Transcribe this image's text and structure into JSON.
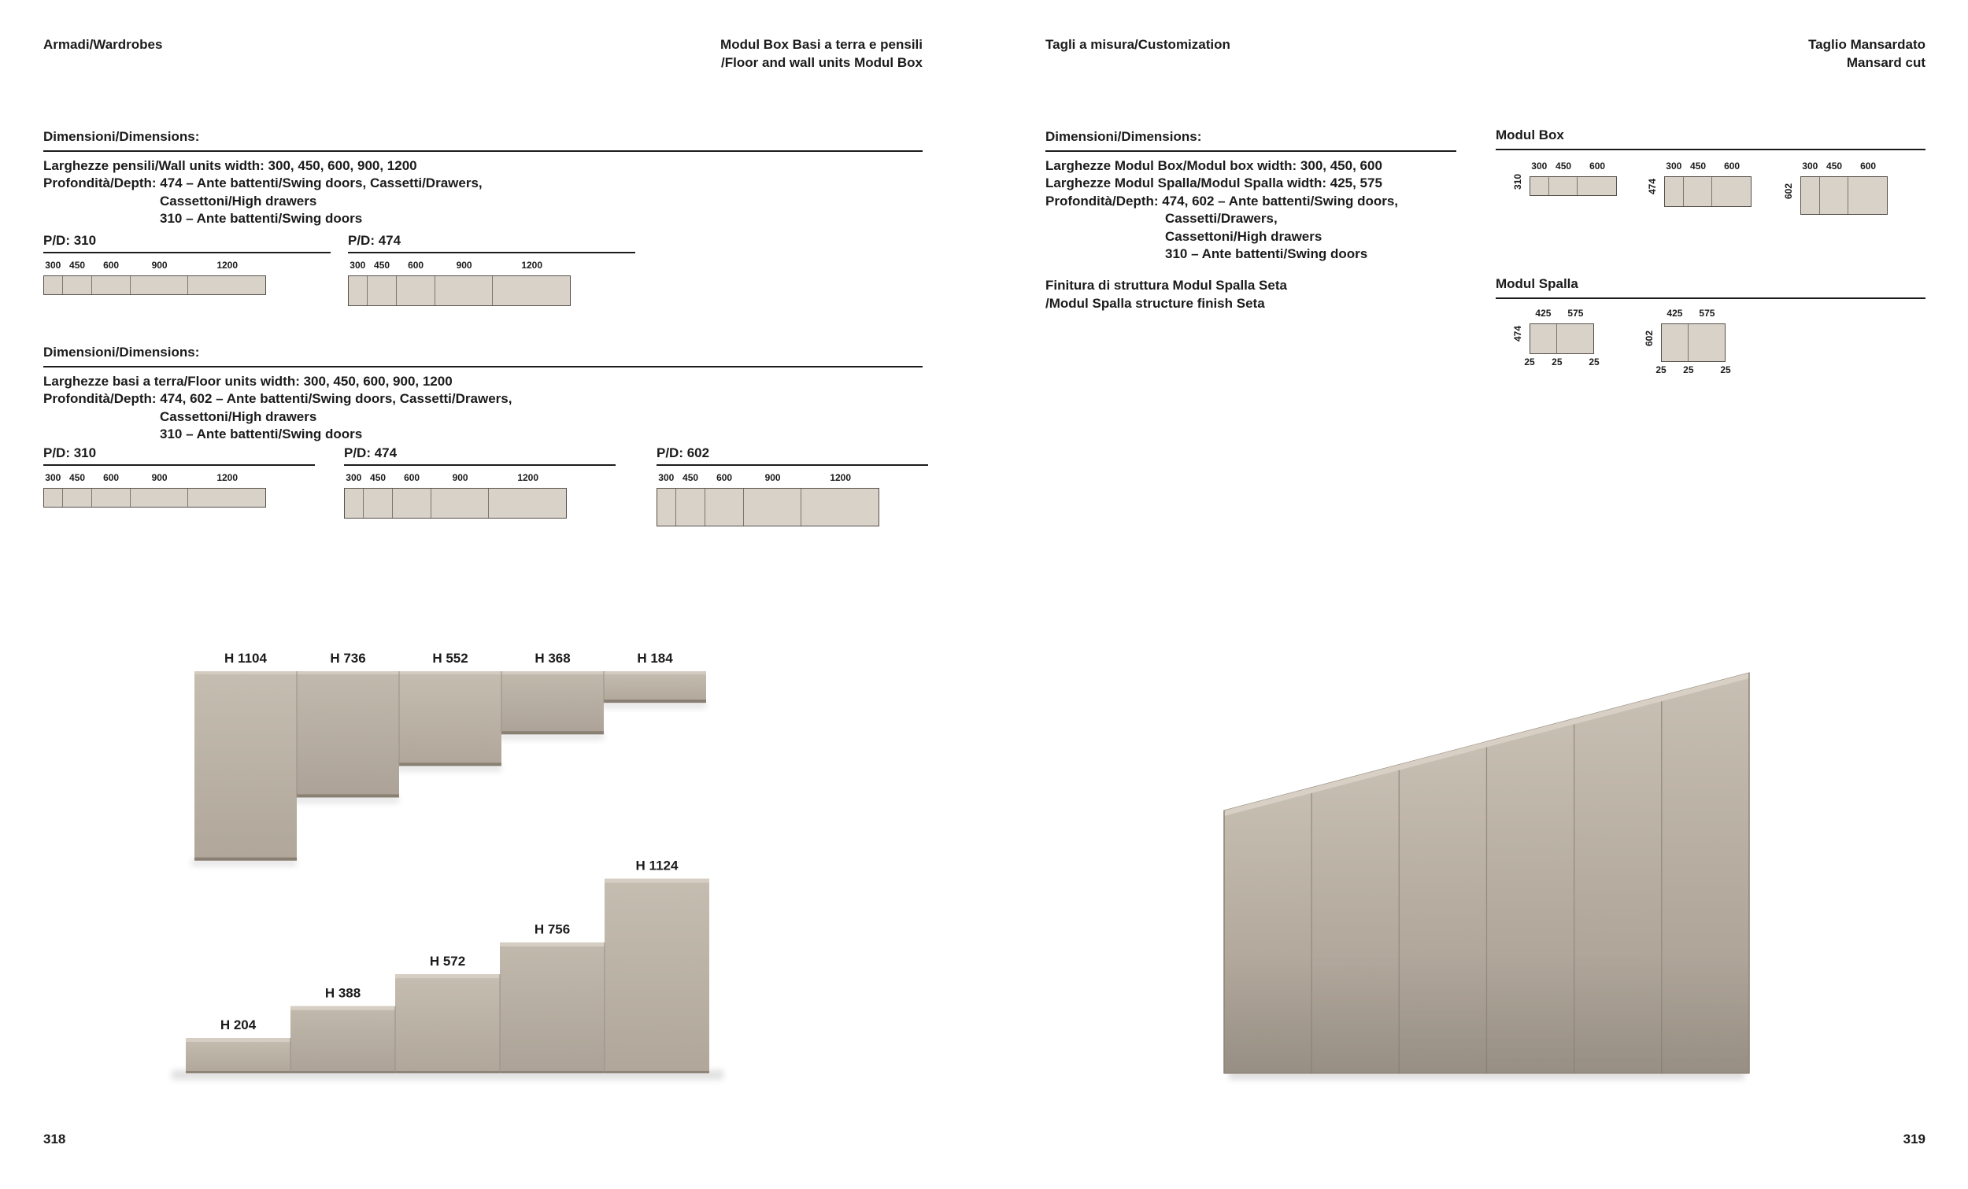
{
  "colors": {
    "page_bg": "#ffffff",
    "text": "#1b1b1b",
    "diagram_fill": "#d9d2c9",
    "diagram_border": "#55504a",
    "cabinet_light": "#c6bdb1",
    "cabinet_base": "#b3a99d",
    "cabinet_dark": "#897f73"
  },
  "left_page": {
    "header_left": "Armadi/Wardrobes",
    "header_right_line1": "Modul Box Basi a terra e pensili",
    "header_right_line2": "/Floor and wall units Modul Box",
    "page_number": "318",
    "wall_section": {
      "title": "Dimensioni/Dimensions:",
      "lines": [
        "Larghezze pensili/Wall units width: 300, 450, 600, 900, 1200",
        "Profondità/Depth: 474 – Ante battenti/Swing doors, Cassetti/Drawers,",
        "Cassettoni/High drawers",
        "310 – Ante battenti/Swing doors"
      ],
      "diagrams": [
        {
          "label": "P/D: 310",
          "depth_mm": 310,
          "widths_mm": [
            300,
            450,
            600,
            900,
            1200
          ]
        },
        {
          "label": "P/D: 474",
          "depth_mm": 474,
          "widths_mm": [
            300,
            450,
            600,
            900,
            1200
          ]
        }
      ]
    },
    "floor_section": {
      "title": "Dimensioni/Dimensions:",
      "lines": [
        "Larghezze basi a terra/Floor units width: 300, 450, 600, 900, 1200",
        "Profondità/Depth: 474, 602 – Ante battenti/Swing doors, Cassetti/Drawers,",
        "Cassettoni/High drawers",
        "310 – Ante battenti/Swing doors"
      ],
      "diagrams": [
        {
          "label": "P/D: 310",
          "depth_mm": 310,
          "widths_mm": [
            300,
            450,
            600,
            900,
            1200
          ]
        },
        {
          "label": "P/D: 474",
          "depth_mm": 474,
          "widths_mm": [
            300,
            450,
            600,
            900,
            1200
          ]
        },
        {
          "label": "P/D: 602",
          "depth_mm": 602,
          "widths_mm": [
            300,
            450,
            600,
            900,
            1200
          ]
        }
      ]
    },
    "wall_render": {
      "labels": [
        "H 1104",
        "H 736",
        "H 552",
        "H 368",
        "H 184"
      ],
      "heights_mm": [
        1104,
        736,
        552,
        368,
        184
      ]
    },
    "floor_render": {
      "labels": [
        "H 204",
        "H 388",
        "H 572",
        "H 756",
        "H 1124"
      ],
      "heights_mm": [
        204,
        388,
        572,
        756,
        1124
      ]
    }
  },
  "right_page": {
    "header_left": "Tagli a misura/Customization",
    "header_right_line1": "Taglio Mansardato",
    "header_right_line2": "Mansard cut",
    "page_number": "319",
    "dimensions_section": {
      "title": "Dimensioni/Dimensions:",
      "lines": [
        "Larghezze Modul Box/Modul box width: 300, 450, 600",
        "Larghezze Modul Spalla/Modul Spalla width: 425, 575",
        "Profondità/Depth: 474, 602 – Ante battenti/Swing doors,",
        "Cassetti/Drawers,",
        "Cassettoni/High drawers",
        "310 – Ante battenti/Swing doors"
      ]
    },
    "finish_note_line1": "Finitura di struttura Modul Spalla Seta",
    "finish_note_line2": "/Modul Spalla structure finish Seta",
    "modul_box": {
      "title": "Modul Box",
      "diagrams": [
        {
          "depth_label": "310",
          "depth_mm": 310,
          "widths_mm": [
            300,
            450,
            600
          ]
        },
        {
          "depth_label": "474",
          "depth_mm": 474,
          "widths_mm": [
            300,
            450,
            600
          ]
        },
        {
          "depth_label": "602",
          "depth_mm": 602,
          "widths_mm": [
            300,
            450,
            600
          ]
        }
      ]
    },
    "modul_spalla": {
      "title": "Modul Spalla",
      "diagrams": [
        {
          "depth_label": "474",
          "depth_mm": 474,
          "widths_mm": [
            425,
            575
          ],
          "thickness_labels": [
            "25",
            "25",
            "25"
          ]
        },
        {
          "depth_label": "602",
          "depth_mm": 602,
          "widths_mm": [
            425,
            575
          ],
          "thickness_labels": [
            "25",
            "25",
            "25"
          ]
        }
      ]
    }
  }
}
